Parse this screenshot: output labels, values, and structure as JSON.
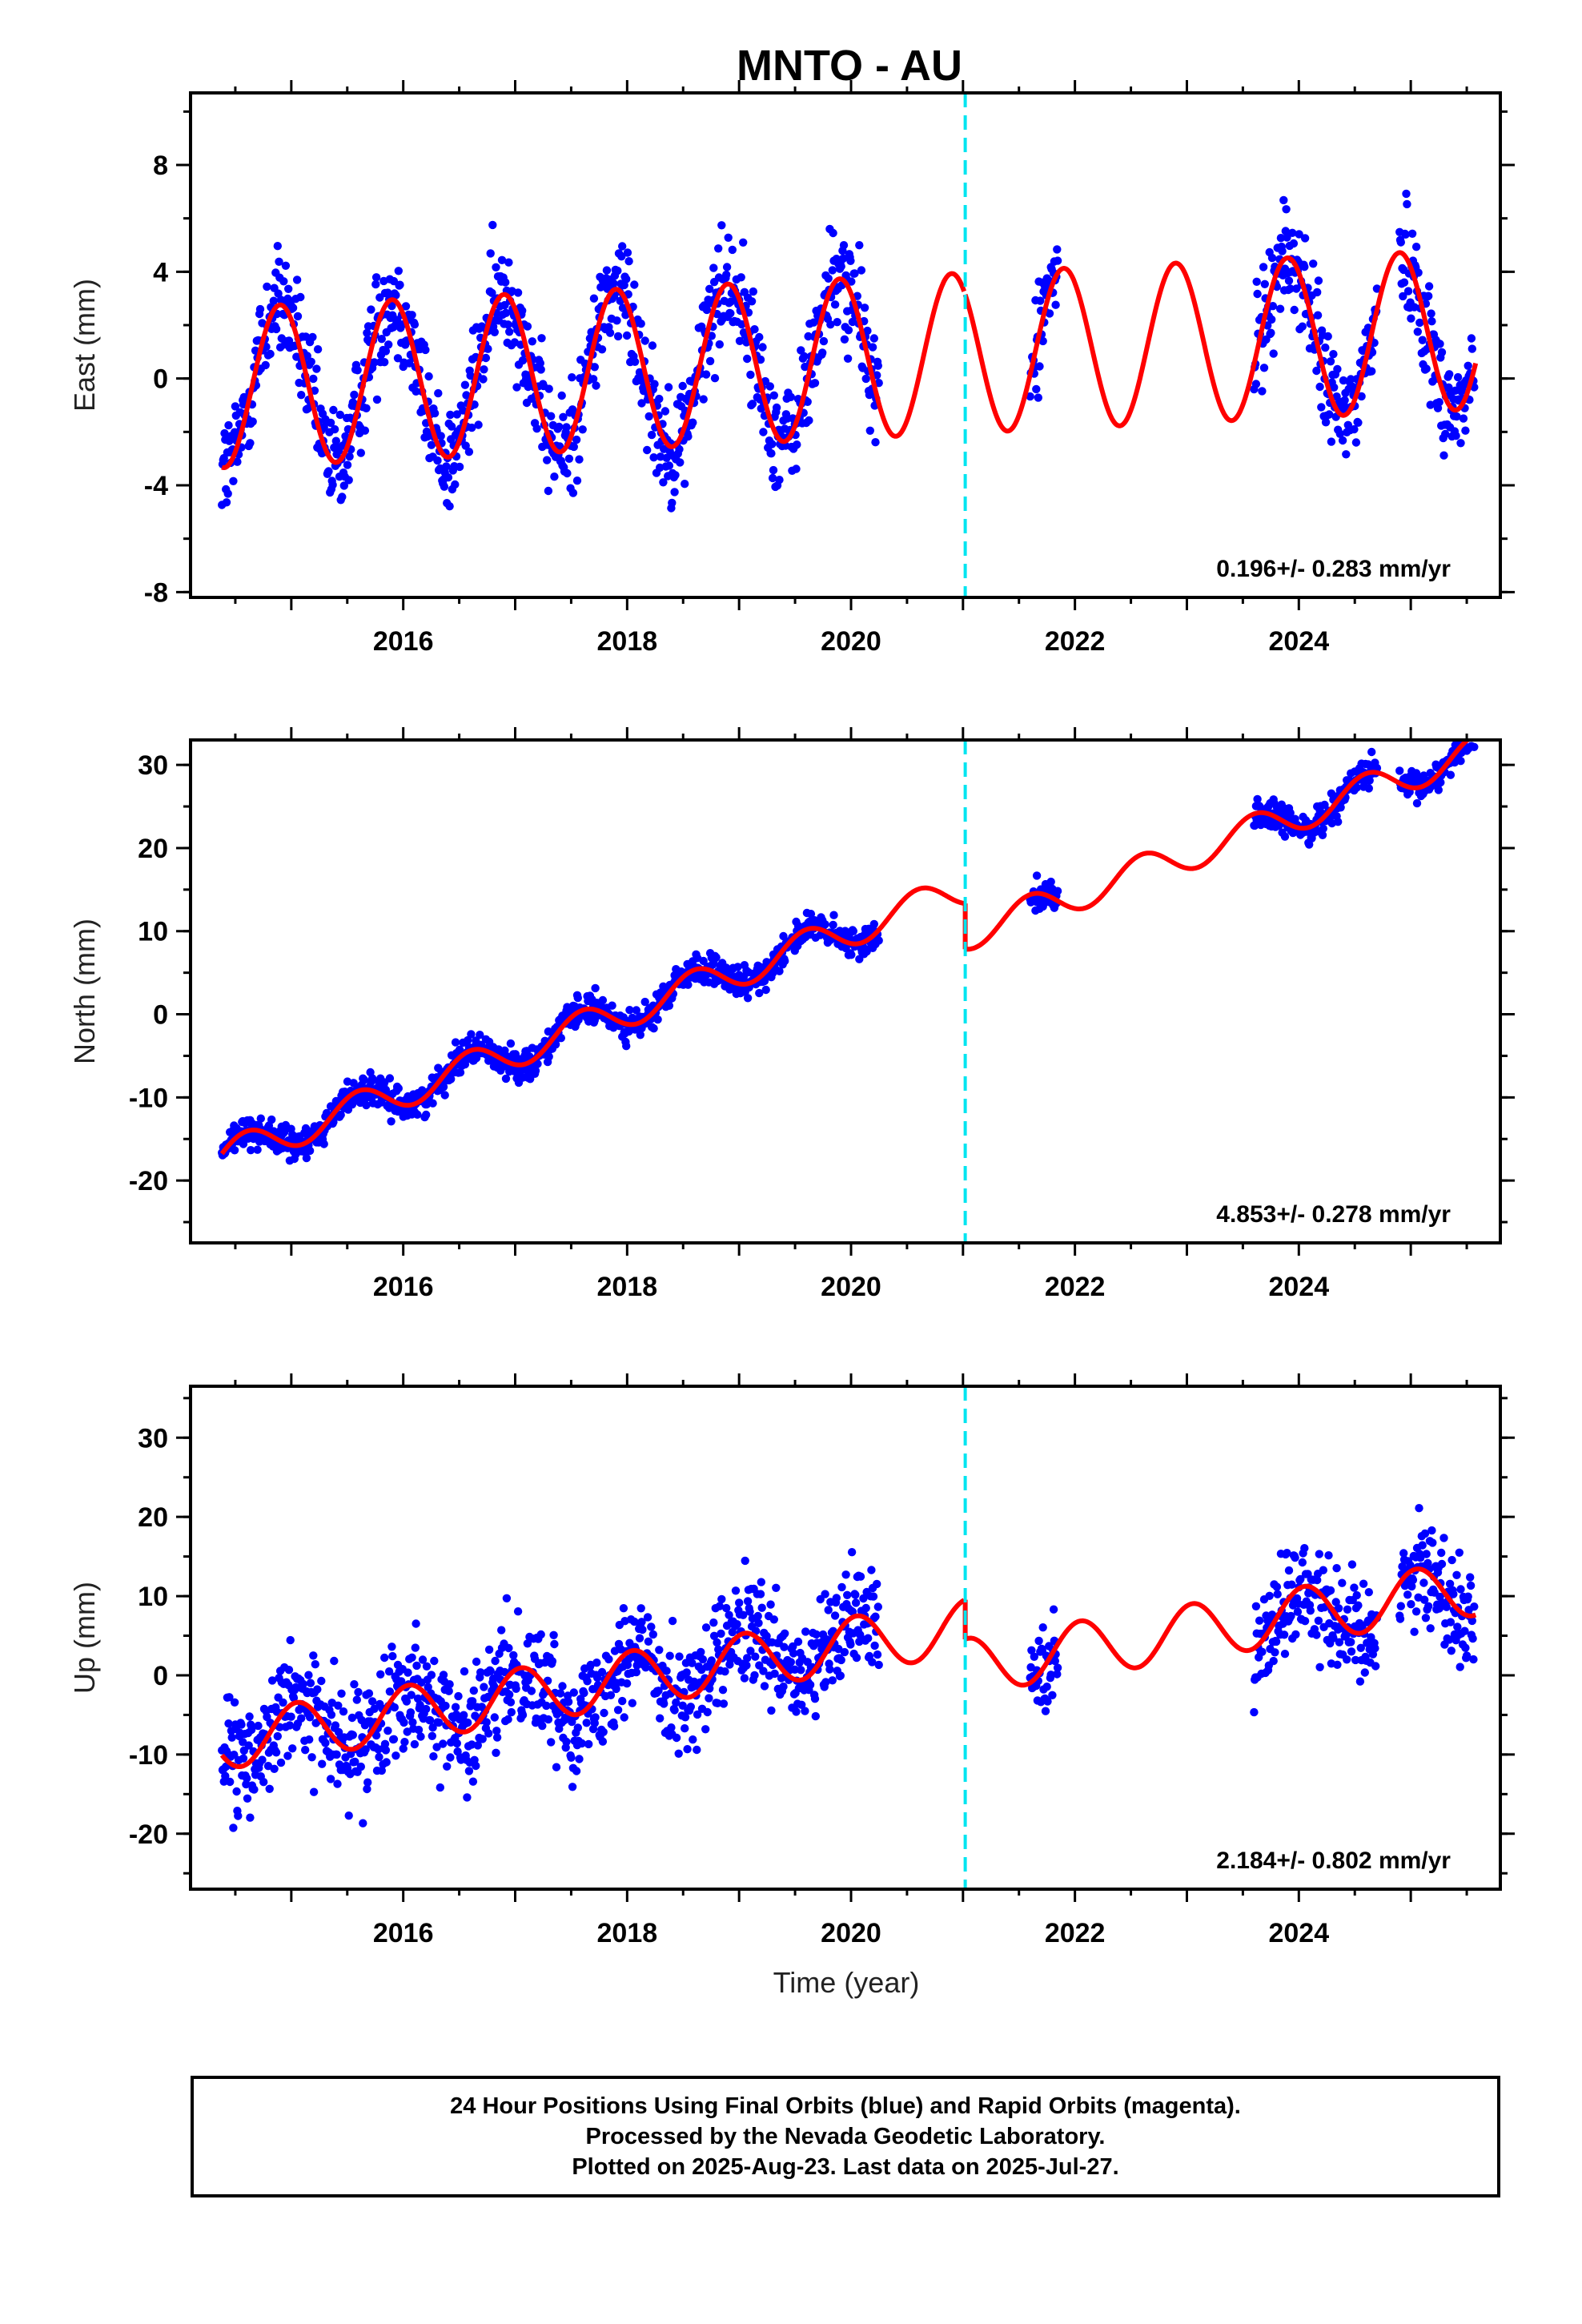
{
  "chart_data": {
    "title": "MNTO - AU",
    "type": "scatter",
    "xlabel": "Time (year)",
    "xlim": [
      2014.1,
      2025.8
    ],
    "x_ticks": [
      2016,
      2018,
      2020,
      2022,
      2024
    ],
    "x_tick_labels": [
      "2016",
      "2018",
      "2020",
      "2022",
      "2024"
    ],
    "break_line_year": 2021.02,
    "colors": {
      "points": "#0000ff",
      "model": "#ff0000",
      "break_line": "#00e5f0",
      "frame": "#000000"
    },
    "panels": [
      {
        "component": "East",
        "ylabel": "East (mm)",
        "ylim": [
          -8.2,
          10.7
        ],
        "y_ticks": [
          -8,
          -4,
          0,
          4,
          8
        ],
        "y_tick_labels": [
          "-8",
          "-4",
          "0",
          "4",
          "8"
        ],
        "rate": "0.196+/- 0.283 mm/yr",
        "series": [
          {
            "kind": "points",
            "segments": [
              [
                2014.38,
                2020.25
              ],
              [
                2021.6,
                2021.85
              ],
              [
                2023.6,
                2024.7
              ],
              [
                2024.9,
                2025.57
              ]
            ],
            "spread": 1.5
          },
          {
            "kind": "model",
            "trend_mm_yr": 0.196,
            "annual_amplitude_mm": 3.0,
            "annual_peak_phase_yr": 0.9,
            "offset_mm": -0.4
          }
        ]
      },
      {
        "component": "North",
        "ylabel": "North (mm)",
        "ylim": [
          -27.5,
          33
        ],
        "y_ticks": [
          -20,
          -10,
          0,
          10,
          20,
          30
        ],
        "y_tick_labels": [
          "-20",
          "-10",
          "0",
          "10",
          "20",
          "30"
        ],
        "rate": "4.853+/- 0.278 mm/yr",
        "series": [
          {
            "kind": "points",
            "segments": [
              [
                2014.38,
                2020.25
              ],
              [
                2021.6,
                2021.85
              ],
              [
                2023.6,
                2024.7
              ],
              [
                2024.9,
                2025.57
              ]
            ],
            "spread": 1.3
          },
          {
            "kind": "model",
            "trend_mm_yr": 4.853,
            "annual_amplitude_mm": 2.0,
            "annual_peak_phase_yr": 0.6,
            "offset_mm": -18.5,
            "break_offset_mm": -5.5
          }
        ]
      },
      {
        "component": "Up",
        "ylabel": "Up (mm)",
        "ylim": [
          -27,
          36.5
        ],
        "y_ticks": [
          -20,
          -10,
          0,
          10,
          20,
          30
        ],
        "y_tick_labels": [
          "-20",
          "-10",
          "0",
          "10",
          "20",
          "30"
        ],
        "rate": "2.184+/- 0.802 mm/yr",
        "series": [
          {
            "kind": "points",
            "segments": [
              [
                2014.38,
                2020.25
              ],
              [
                2021.6,
                2021.85
              ],
              [
                2023.6,
                2024.7
              ],
              [
                2024.9,
                2025.57
              ]
            ],
            "spread": 5.0
          },
          {
            "kind": "model",
            "trend_mm_yr": 2.184,
            "annual_amplitude_mm": 3.5,
            "annual_peak_phase_yr": 0.05,
            "offset_mm": -9.0,
            "break_offset_mm": -5.0
          }
        ]
      }
    ]
  },
  "caption": {
    "line1": "24 Hour Positions Using Final Orbits (blue) and Rapid Orbits (magenta).",
    "line2": "Processed by the Nevada Geodetic Laboratory.",
    "line3": "Plotted on 2025-Aug-23. Last data on 2025-Jul-27."
  }
}
